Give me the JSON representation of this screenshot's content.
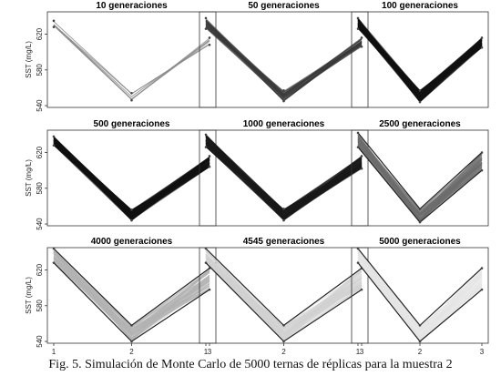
{
  "caption": "Fig. 5. Simulación de Monte Carlo de 5000 ternas de réplicas para la muestra 2",
  "chart_data": [
    {
      "type": "line",
      "title": "10 generaciones",
      "ylabel": "SST (mg/L)",
      "x": [
        1,
        2,
        3
      ],
      "ylim": [
        538,
        645
      ],
      "yticks": [
        540,
        580,
        620
      ],
      "xticks": [
        1,
        2,
        3
      ],
      "density": "sparse",
      "color": "#8a8a8a",
      "low": [
        628,
        546,
        608
      ],
      "high": [
        635,
        554,
        616
      ]
    },
    {
      "type": "line",
      "title": "50 generaciones",
      "ylabel": "",
      "x": [
        1,
        2,
        3
      ],
      "ylim": [
        538,
        645
      ],
      "yticks": [
        540,
        580,
        620
      ],
      "xticks": [
        1,
        2,
        3
      ],
      "density": "medium",
      "color": "#3a3a3a",
      "low": [
        626,
        545,
        606
      ],
      "high": [
        638,
        557,
        616
      ]
    },
    {
      "type": "line",
      "title": "100 generaciones",
      "ylabel": "",
      "x": [
        1,
        2,
        3
      ],
      "ylim": [
        538,
        645
      ],
      "yticks": [
        540,
        580,
        620
      ],
      "xticks": [
        1,
        2,
        3
      ],
      "density": "dense",
      "color": "#111111",
      "low": [
        626,
        544,
        605
      ],
      "high": [
        638,
        557,
        616
      ]
    },
    {
      "type": "line",
      "title": "500 generaciones",
      "ylabel": "SST (mg/L)",
      "x": [
        1,
        2,
        3
      ],
      "ylim": [
        538,
        645
      ],
      "yticks": [
        540,
        580,
        620
      ],
      "xticks": [
        1,
        2,
        3
      ],
      "density": "dense",
      "color": "#111111",
      "low": [
        628,
        544,
        604
      ],
      "high": [
        638,
        556,
        616
      ]
    },
    {
      "type": "line",
      "title": "1000 generaciones",
      "ylabel": "",
      "x": [
        1,
        2,
        3
      ],
      "ylim": [
        538,
        645
      ],
      "yticks": [
        540,
        580,
        620
      ],
      "xticks": [
        1,
        2,
        3
      ],
      "density": "dense",
      "color": "#1a1a1a",
      "low": [
        626,
        544,
        602
      ],
      "high": [
        640,
        557,
        616
      ]
    },
    {
      "type": "line",
      "title": "2500 generaciones",
      "ylabel": "",
      "x": [
        1,
        2,
        3
      ],
      "ylim": [
        538,
        645
      ],
      "yticks": [
        540,
        580,
        620
      ],
      "xticks": [
        1,
        2,
        3
      ],
      "density": "band",
      "color": "#6e6e6e",
      "low": [
        626,
        542,
        600
      ],
      "high": [
        642,
        557,
        620
      ]
    },
    {
      "type": "line",
      "title": "4000 generaciones",
      "ylabel": "SST (mg/L)",
      "x": [
        1,
        2,
        3
      ],
      "ylim": [
        538,
        645
      ],
      "yticks": [
        540,
        580,
        620
      ],
      "xticks": [
        1,
        2,
        3
      ],
      "density": "band",
      "color": "#b3b3b3",
      "low": [
        628,
        540,
        598
      ],
      "high": [
        644,
        558,
        622
      ]
    },
    {
      "type": "line",
      "title": "4545 generaciones",
      "ylabel": "",
      "x": [
        1,
        2,
        3
      ],
      "ylim": [
        538,
        645
      ],
      "yticks": [
        540,
        580,
        620
      ],
      "xticks": [
        1,
        2,
        3
      ],
      "density": "band",
      "color": "#d2d2d2",
      "low": [
        628,
        540,
        598
      ],
      "high": [
        644,
        558,
        622
      ]
    },
    {
      "type": "line",
      "title": "5000 generaciones",
      "ylabel": "",
      "x": [
        1,
        2,
        3
      ],
      "ylim": [
        538,
        645
      ],
      "yticks": [
        540,
        580,
        620
      ],
      "xticks": [
        1,
        2,
        3
      ],
      "density": "band",
      "color": "#e6e6e6",
      "low": [
        628,
        540,
        598
      ],
      "high": [
        644,
        558,
        622
      ]
    }
  ]
}
